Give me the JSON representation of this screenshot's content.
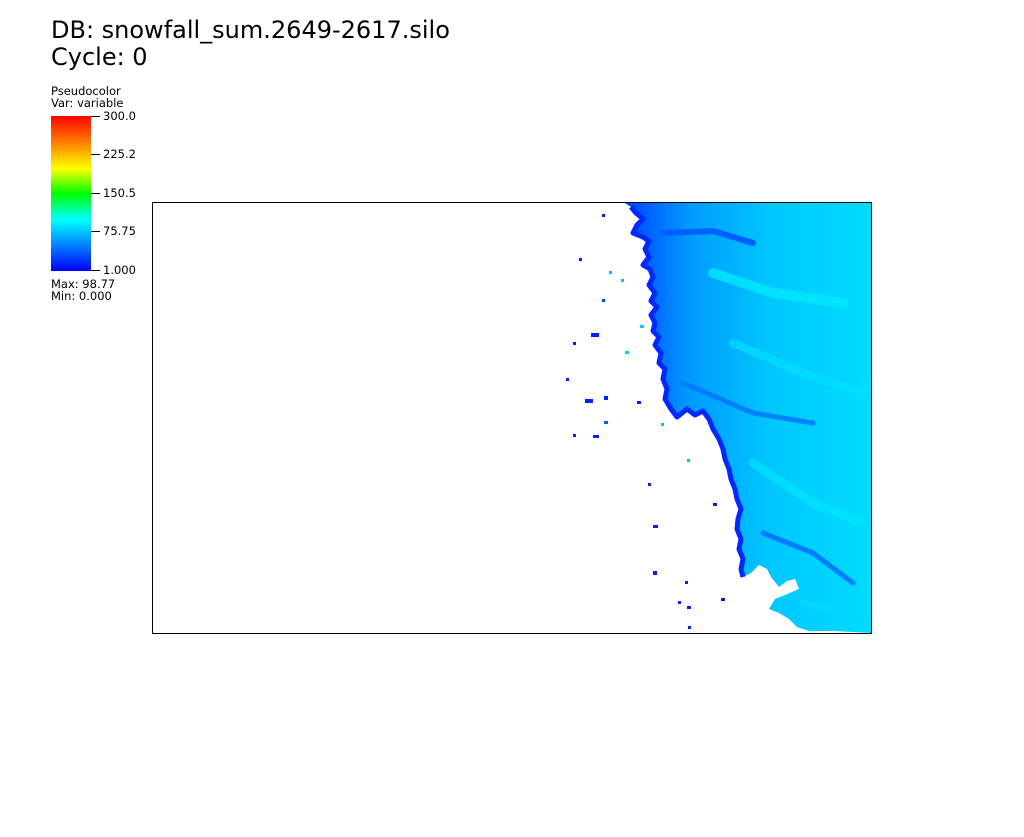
{
  "header": {
    "db": "DB: snowfall_sum.2649-2617.silo",
    "cycle": "Cycle: 0"
  },
  "legend": {
    "plot_type": "Pseudocolor",
    "var": "Var: variable",
    "ticks": [
      "300.0",
      "225.2",
      "150.5",
      "75.75",
      "1.000"
    ],
    "max": "Max: 98.77",
    "min": "Min: 0.000",
    "colormap": [
      "#0000ff",
      "#00ffff",
      "#00ff00",
      "#ffff00",
      "#ff0000"
    ]
  },
  "chart_data": {
    "type": "heatmap",
    "colorbar_range": [
      1.0,
      300.0
    ],
    "data_max": 98.77,
    "data_min": 0.0,
    "colors": {
      "low": "#0020ff",
      "mid": "#0090ff",
      "high": "#00e8ff"
    }
  }
}
